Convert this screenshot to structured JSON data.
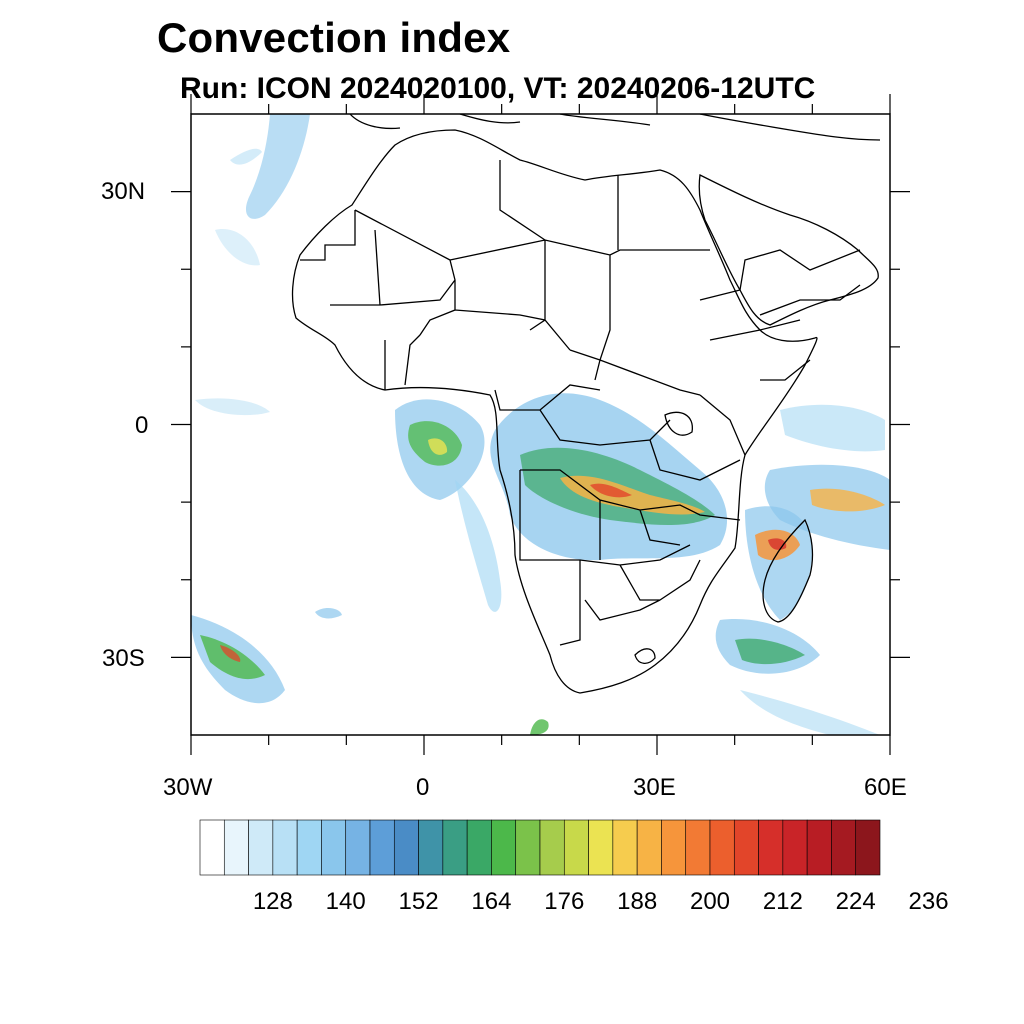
{
  "title": "Convection index",
  "subtitle": "Run: ICON 2024020100,  VT: 20240206-12UTC",
  "map": {
    "lon_range": [
      -30,
      60
    ],
    "lat_range": [
      -40,
      40
    ],
    "lat_labels": [
      "30N",
      "0",
      "30S"
    ],
    "lon_labels": [
      "30W",
      "0",
      "30E",
      "60E"
    ]
  },
  "colorbar": {
    "colors": [
      "#ffffff",
      "#e8f5fc",
      "#cfeaf8",
      "#b8e0f5",
      "#9fd6f3",
      "#8ac6ec",
      "#76b3e4",
      "#5d9ed8",
      "#4a8cc6",
      "#3f93a8",
      "#3a9e84",
      "#3aa866",
      "#4cb84a",
      "#7bc24a",
      "#a6cc4c",
      "#c8d94a",
      "#ebe352",
      "#f6cc4e",
      "#f7b345",
      "#f6953b",
      "#f27a34",
      "#ec5f2d",
      "#e2452a",
      "#d62f2a",
      "#c92428",
      "#b81d24",
      "#a51a21",
      "#8c161c"
    ],
    "tick_labels": [
      "128",
      "140",
      "152",
      "164",
      "176",
      "188",
      "200",
      "212",
      "224",
      "236"
    ]
  }
}
